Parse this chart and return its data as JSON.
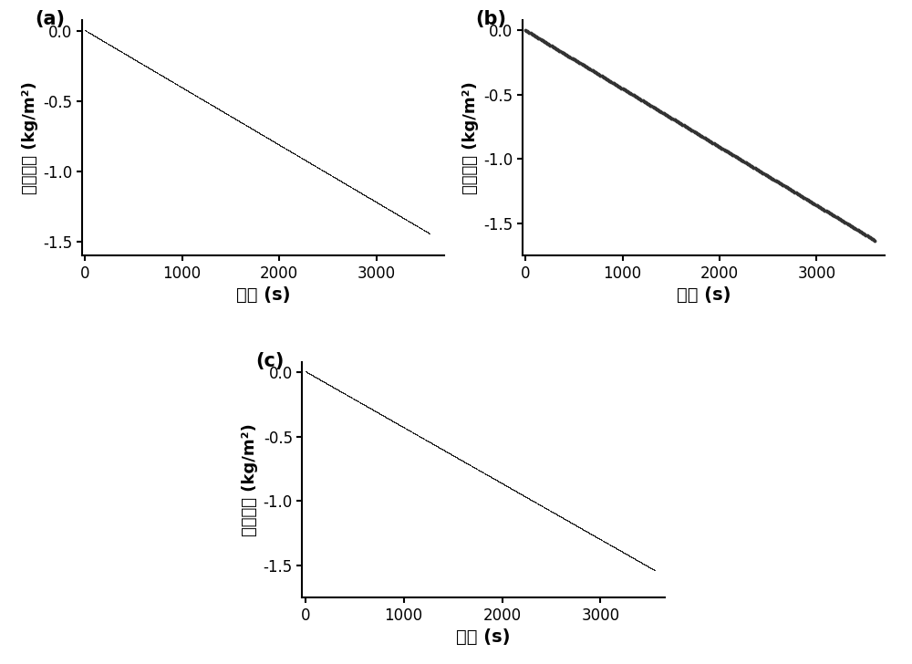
{
  "subplots": [
    {
      "label": "(a)",
      "x_end": 3550,
      "slope": -0.000408,
      "marker": ",",
      "markersize": 1,
      "color": "#222222",
      "n_points": 3550
    },
    {
      "label": "(b)",
      "x_end": 3600,
      "slope": -0.000453,
      "marker": ".",
      "markersize": 3.5,
      "color": "#333333",
      "n_points": 350
    },
    {
      "label": "(c)",
      "x_end": 3550,
      "slope": -0.000435,
      "marker": ",",
      "markersize": 1,
      "color": "#222222",
      "n_points": 3550
    }
  ],
  "xlabel": "时间 (s)",
  "ylabel": "质量变化 (kg/m²)",
  "xlabel_fontsize": 14,
  "ylabel_fontsize": 13,
  "tick_fontsize": 12,
  "label_fontsize": 15,
  "background_color": "#ffffff",
  "xticks_a": [
    0,
    1000,
    2000,
    3000
  ],
  "xticks_b": [
    0,
    1000,
    2000,
    3000
  ],
  "xticks_c": [
    0,
    1000,
    2000,
    3000
  ],
  "yticks": [
    0.0,
    -0.5,
    -1.0,
    -1.5
  ],
  "xlim_a": [
    -30,
    3700
  ],
  "xlim_b": [
    -30,
    3700
  ],
  "xlim_c": [
    -30,
    3650
  ],
  "ylim_a": [
    -1.6,
    0.08
  ],
  "ylim_b": [
    -1.75,
    0.08
  ],
  "ylim_c": [
    -1.75,
    0.08
  ]
}
